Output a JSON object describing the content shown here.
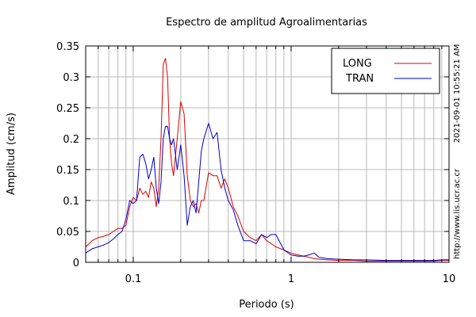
{
  "side_text": {
    "timestamp": "2021-09-01 10:55:21 AM",
    "url": "http://www.lis.ucr.ac.cr"
  },
  "chart_data": {
    "type": "line",
    "title": "Espectro de amplitud Agroalimentarias",
    "xlabel": "Periodo (s)",
    "ylabel": "Amplitud (cm/s)",
    "xscale": "log",
    "xlim": [
      0.05,
      10
    ],
    "ylim": [
      0,
      0.35
    ],
    "x_ticks": [
      0.1,
      1,
      10
    ],
    "x_tick_labels": [
      "0.1",
      "1",
      "10"
    ],
    "y_ticks": [
      0,
      0.05,
      0.1,
      0.15,
      0.2,
      0.25,
      0.3,
      0.35
    ],
    "y_tick_labels": [
      "0",
      "0.05",
      "0.1",
      "0.15",
      "0.2",
      "0.25",
      "0.3",
      "0.35"
    ],
    "grid": true,
    "legend_position": "top-right",
    "series": [
      {
        "name": "LONG",
        "color": "#dd0000",
        "x": [
          0.05,
          0.055,
          0.06,
          0.065,
          0.07,
          0.075,
          0.08,
          0.085,
          0.09,
          0.095,
          0.1,
          0.105,
          0.11,
          0.115,
          0.12,
          0.125,
          0.13,
          0.135,
          0.14,
          0.145,
          0.15,
          0.155,
          0.16,
          0.165,
          0.17,
          0.175,
          0.18,
          0.19,
          0.2,
          0.21,
          0.22,
          0.23,
          0.24,
          0.25,
          0.26,
          0.27,
          0.28,
          0.3,
          0.32,
          0.34,
          0.36,
          0.38,
          0.4,
          0.43,
          0.46,
          0.5,
          0.55,
          0.6,
          0.65,
          0.7,
          0.75,
          0.8,
          0.9,
          1.0,
          1.1,
          1.2,
          1.3,
          1.4,
          1.5,
          1.7,
          2.0,
          2.5,
          3.0,
          4.0,
          5.0,
          6.0,
          7.0,
          8.0,
          9.0,
          10.0
        ],
        "y": [
          0.025,
          0.035,
          0.04,
          0.042,
          0.045,
          0.05,
          0.055,
          0.055,
          0.06,
          0.09,
          0.105,
          0.1,
          0.12,
          0.11,
          0.115,
          0.105,
          0.13,
          0.12,
          0.09,
          0.12,
          0.2,
          0.32,
          0.33,
          0.3,
          0.2,
          0.16,
          0.14,
          0.2,
          0.26,
          0.24,
          0.14,
          0.1,
          0.09,
          0.095,
          0.08,
          0.1,
          0.1,
          0.145,
          0.14,
          0.14,
          0.12,
          0.135,
          0.12,
          0.09,
          0.075,
          0.05,
          0.04,
          0.035,
          0.045,
          0.035,
          0.03,
          0.025,
          0.02,
          0.015,
          0.012,
          0.01,
          0.008,
          0.006,
          0.005,
          0.004,
          0.003,
          0.003,
          0.002,
          0.002,
          0.002,
          0.002,
          0.002,
          0.002,
          0.003,
          0.003
        ]
      },
      {
        "name": "TRAN",
        "color": "#0000cc",
        "x": [
          0.05,
          0.055,
          0.06,
          0.065,
          0.07,
          0.075,
          0.08,
          0.085,
          0.09,
          0.095,
          0.1,
          0.105,
          0.11,
          0.115,
          0.12,
          0.125,
          0.13,
          0.135,
          0.14,
          0.145,
          0.15,
          0.155,
          0.16,
          0.165,
          0.17,
          0.175,
          0.18,
          0.19,
          0.2,
          0.21,
          0.22,
          0.23,
          0.24,
          0.25,
          0.26,
          0.27,
          0.28,
          0.3,
          0.32,
          0.34,
          0.36,
          0.38,
          0.4,
          0.43,
          0.46,
          0.5,
          0.55,
          0.6,
          0.65,
          0.7,
          0.75,
          0.8,
          0.9,
          1.0,
          1.1,
          1.2,
          1.3,
          1.4,
          1.5,
          1.7,
          2.0,
          2.5,
          3.0,
          4.0,
          5.0,
          6.0,
          7.0,
          8.0,
          9.0,
          10.0
        ],
        "y": [
          0.015,
          0.022,
          0.025,
          0.028,
          0.032,
          0.038,
          0.045,
          0.05,
          0.07,
          0.1,
          0.095,
          0.1,
          0.17,
          0.175,
          0.16,
          0.135,
          0.15,
          0.17,
          0.12,
          0.095,
          0.13,
          0.2,
          0.22,
          0.22,
          0.2,
          0.19,
          0.2,
          0.15,
          0.19,
          0.14,
          0.06,
          0.09,
          0.1,
          0.08,
          0.13,
          0.18,
          0.2,
          0.225,
          0.2,
          0.21,
          0.15,
          0.12,
          0.1,
          0.085,
          0.06,
          0.035,
          0.035,
          0.03,
          0.045,
          0.04,
          0.045,
          0.045,
          0.02,
          0.012,
          0.01,
          0.01,
          0.012,
          0.015,
          0.008,
          0.006,
          0.005,
          0.004,
          0.004,
          0.003,
          0.003,
          0.003,
          0.003,
          0.003,
          0.004,
          0.004
        ]
      }
    ]
  }
}
